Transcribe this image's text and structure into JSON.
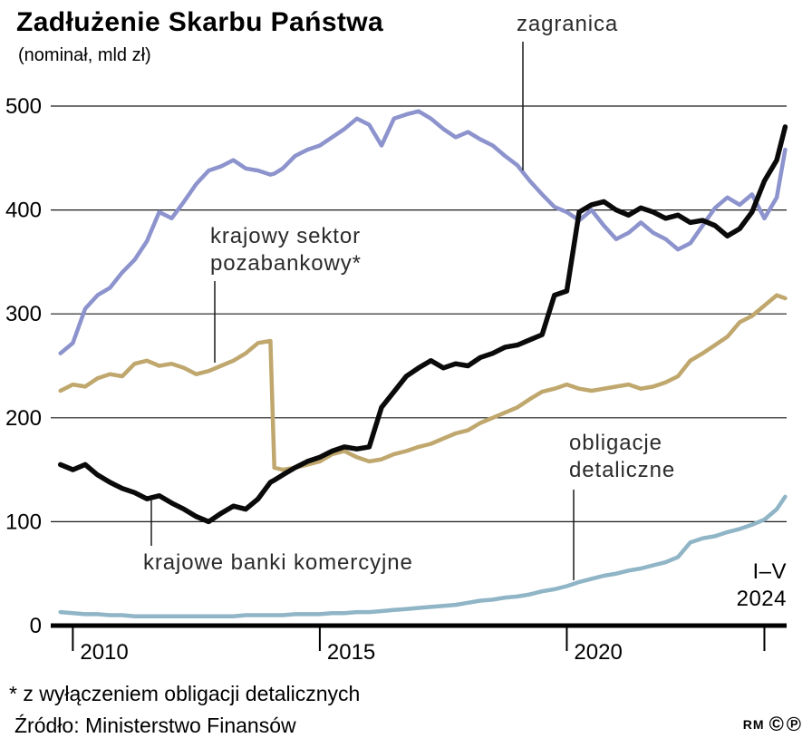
{
  "header": {
    "title": "Zadłużenie Skarbu Państwa",
    "subtitle": "(nominał, mld zł)"
  },
  "annotations": {
    "zagranica": "zagranica",
    "pozabankowy1": "krajowy sektor",
    "pozabankowy2": "pozabankowy*",
    "banki": "krajowe banki komercyjne",
    "detaliczne1": "obligacje",
    "detaliczne2": "detaliczne",
    "period1": "I–V",
    "period2": "2024"
  },
  "footer": {
    "footnote": "* z wyłączeniem obligacji detalicznych",
    "source": "Źródło: Ministerstwo Finansów",
    "credit": "RM",
    "copyright_symbol": "©",
    "circled_p_symbol": "℗"
  },
  "colors": {
    "zagranica": "#8c93cd",
    "pozabankowy": "#bfa76d",
    "banki": "#0a0a0a",
    "detaliczne": "#8fb5c6",
    "grid": "#1a1a1a",
    "axis": "#000000"
  },
  "chart_data": {
    "type": "line",
    "title": "Zadłużenie Skarbu Państwa",
    "subtitle": "(nominał, mld zł)",
    "unit": "mld zł",
    "ylim": [
      0,
      500
    ],
    "yticks": [
      0,
      100,
      200,
      300,
      400,
      500
    ],
    "xlim": [
      2009.7,
      2024.45
    ],
    "xticks": [
      {
        "x": 2010,
        "label": "2010"
      },
      {
        "x": 2015,
        "label": "2015"
      },
      {
        "x": 2020,
        "label": "2020"
      },
      {
        "x": 2024,
        "label": ""
      }
    ],
    "grid": true,
    "legend_position": "inline-annotations",
    "x": [
      2009.75,
      2010,
      2010.25,
      2010.5,
      2010.75,
      2011,
      2011.25,
      2011.5,
      2011.75,
      2012,
      2012.25,
      2012.5,
      2012.75,
      2013,
      2013.25,
      2013.5,
      2013.75,
      2014,
      2014.08,
      2014.25,
      2014.5,
      2014.75,
      2015,
      2015.25,
      2015.5,
      2015.75,
      2016,
      2016.25,
      2016.5,
      2016.75,
      2017,
      2017.25,
      2017.5,
      2017.75,
      2018,
      2018.25,
      2018.5,
      2018.75,
      2019,
      2019.25,
      2019.5,
      2019.75,
      2020,
      2020.25,
      2020.5,
      2020.75,
      2021,
      2021.25,
      2021.5,
      2021.75,
      2022,
      2022.25,
      2022.5,
      2022.75,
      2023,
      2023.25,
      2023.5,
      2023.75,
      2024,
      2024.25,
      2024.42
    ],
    "series": [
      {
        "name": "zagranica",
        "color_key": "zagranica",
        "width": 4.5,
        "values": [
          262,
          272,
          305,
          318,
          325,
          340,
          352,
          370,
          398,
          392,
          408,
          425,
          438,
          442,
          448,
          440,
          438,
          434,
          435,
          440,
          452,
          458,
          462,
          470,
          478,
          488,
          482,
          462,
          488,
          492,
          495,
          488,
          478,
          470,
          475,
          468,
          462,
          452,
          443,
          428,
          415,
          403,
          398,
          390,
          400,
          385,
          372,
          378,
          388,
          378,
          372,
          362,
          368,
          385,
          402,
          412,
          405,
          415,
          392,
          412,
          458
        ]
      },
      {
        "name": "krajowy sektor pozabankowy*",
        "color_key": "pozabankowy",
        "width": 4.5,
        "values": [
          226,
          232,
          230,
          238,
          242,
          240,
          252,
          255,
          250,
          252,
          248,
          242,
          245,
          250,
          255,
          262,
          272,
          274,
          152,
          150,
          152,
          155,
          158,
          165,
          168,
          162,
          158,
          160,
          165,
          168,
          172,
          175,
          180,
          185,
          188,
          195,
          200,
          205,
          210,
          218,
          225,
          228,
          232,
          228,
          226,
          228,
          230,
          232,
          228,
          230,
          234,
          240,
          255,
          262,
          270,
          278,
          292,
          298,
          308,
          318,
          315
        ]
      },
      {
        "name": "krajowe banki komercyjne",
        "color_key": "banki",
        "width": 5.5,
        "values": [
          155,
          150,
          155,
          145,
          138,
          132,
          128,
          122,
          125,
          118,
          112,
          105,
          100,
          108,
          115,
          112,
          122,
          138,
          140,
          145,
          152,
          158,
          162,
          168,
          172,
          170,
          172,
          210,
          225,
          240,
          248,
          255,
          248,
          252,
          250,
          258,
          262,
          268,
          270,
          275,
          280,
          318,
          322,
          398,
          405,
          408,
          400,
          395,
          402,
          398,
          392,
          395,
          388,
          390,
          385,
          375,
          382,
          398,
          428,
          448,
          480
        ]
      },
      {
        "name": "obligacje detaliczne",
        "color_key": "detaliczne",
        "width": 4.5,
        "values": [
          13,
          12,
          11,
          11,
          10,
          10,
          9,
          9,
          9,
          9,
          9,
          9,
          9,
          9,
          9,
          10,
          10,
          10,
          10,
          10,
          11,
          11,
          11,
          12,
          12,
          13,
          13,
          14,
          15,
          16,
          17,
          18,
          19,
          20,
          22,
          24,
          25,
          27,
          28,
          30,
          33,
          35,
          38,
          42,
          45,
          48,
          50,
          53,
          55,
          58,
          61,
          66,
          80,
          84,
          86,
          90,
          93,
          97,
          102,
          112,
          124
        ]
      }
    ]
  }
}
